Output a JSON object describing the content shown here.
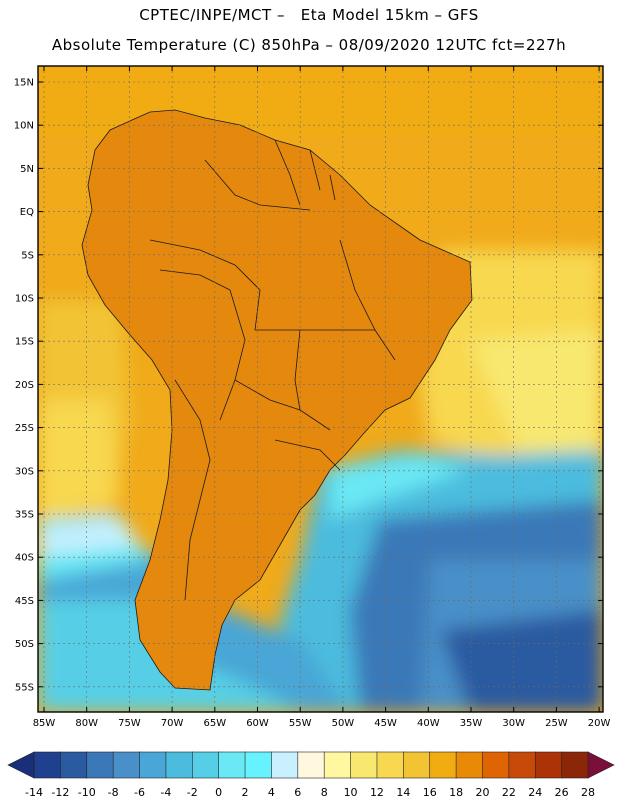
{
  "header": {
    "line1": "CPTEC/INPE/MCT –   Eta Model 15km – GFS",
    "line2": "Absolute Temperature (C) 850hPa – 08/09/2020 12UTC fct=227h"
  },
  "axes": {
    "lat_labels": [
      "15N",
      "10N",
      "5N",
      "EQ",
      "5S",
      "10S",
      "15S",
      "20S",
      "25S",
      "30S",
      "35S",
      "40S",
      "45S",
      "50S",
      "55S"
    ],
    "lon_labels": [
      "85W",
      "80W",
      "75W",
      "70W",
      "65W",
      "60W",
      "55W",
      "50W",
      "45W",
      "40W",
      "35W",
      "30W",
      "25W",
      "20W"
    ]
  },
  "colorbar": {
    "labels": [
      "-14",
      "-12",
      "-10",
      "-8",
      "-6",
      "-4",
      "-2",
      "0",
      "2",
      "4",
      "6",
      "8",
      "10",
      "12",
      "14",
      "16",
      "18",
      "20",
      "22",
      "24",
      "26",
      "28"
    ],
    "colors": [
      "#1f3f8f",
      "#2a5aa0",
      "#3a78b8",
      "#4a90c8",
      "#4aa6d6",
      "#4cbcde",
      "#56cfe6",
      "#6ae8f4",
      "#66f2ff",
      "#c8f0ff",
      "#fff7de",
      "#fff8a0",
      "#f8e870",
      "#f8d850",
      "#f2c434",
      "#f0ac10",
      "#e88a08",
      "#de6404",
      "#c84a08",
      "#ac3208",
      "#8c2608"
    ],
    "left_arrow": "#1a2f7a",
    "right_arrow": "#7a0f3a",
    "ocean_base": "#f0aa1a"
  }
}
